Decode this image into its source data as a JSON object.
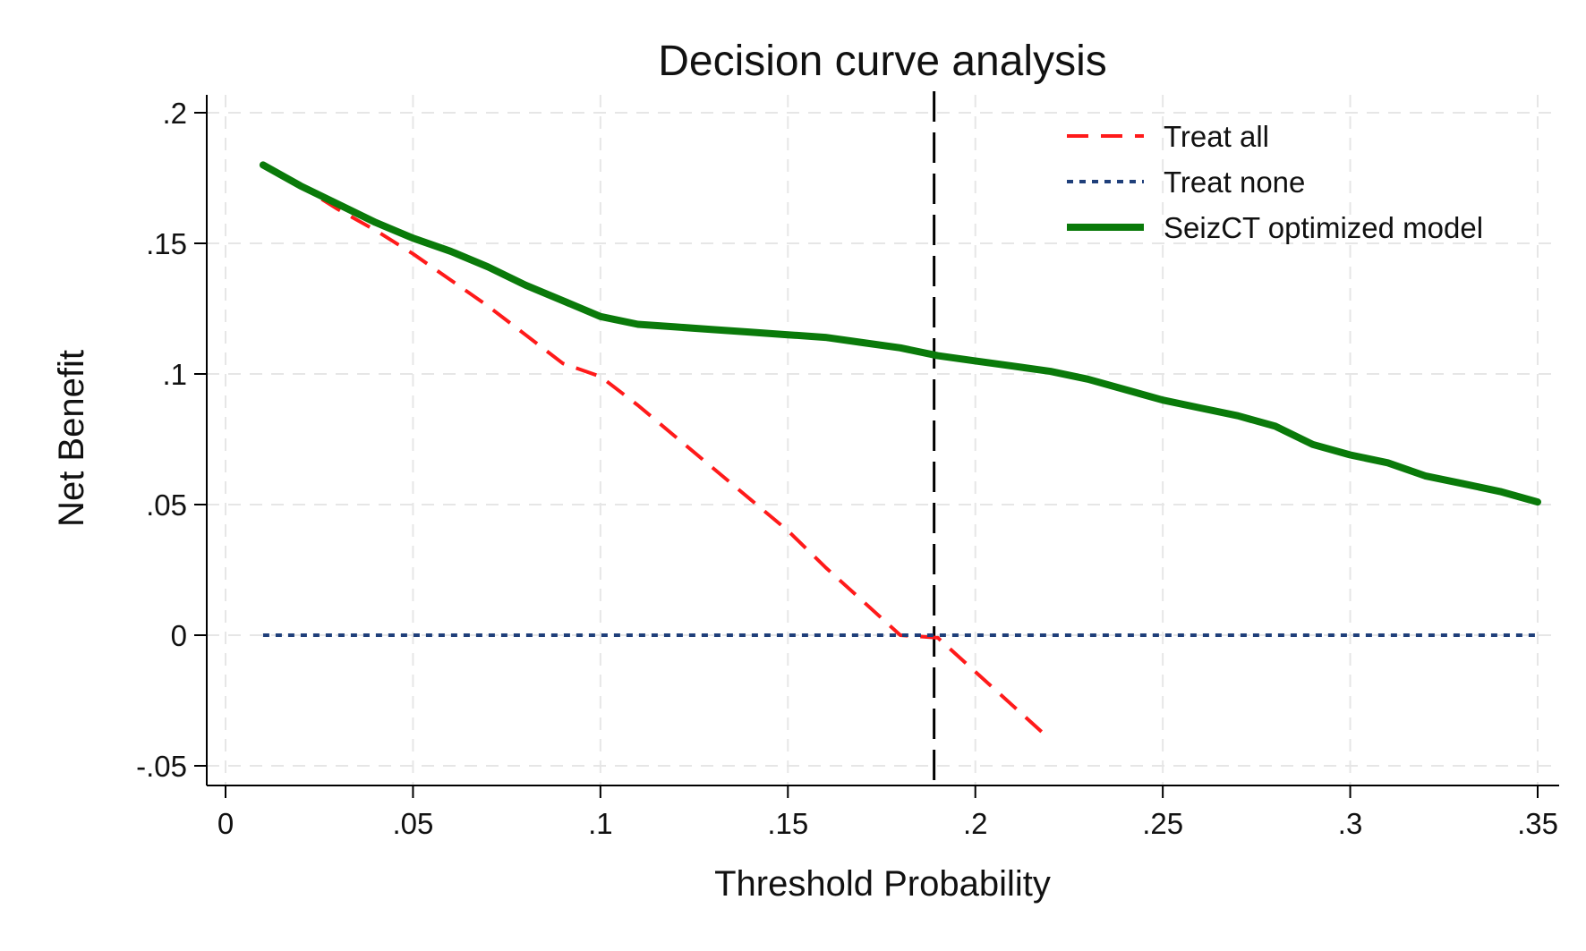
{
  "chart_data": {
    "type": "line",
    "title": "Decision curve analysis",
    "xlabel": "Threshold Probability",
    "ylabel": "Net Benefit",
    "xlim": [
      0,
      0.35
    ],
    "ylim": [
      -0.05,
      0.2
    ],
    "x_ticks": [
      {
        "value": 0,
        "label": "0"
      },
      {
        "value": 0.05,
        "label": ".05"
      },
      {
        "value": 0.1,
        "label": ".1"
      },
      {
        "value": 0.15,
        "label": ".15"
      },
      {
        "value": 0.2,
        "label": ".2"
      },
      {
        "value": 0.25,
        "label": ".25"
      },
      {
        "value": 0.3,
        "label": ".3"
      },
      {
        "value": 0.35,
        "label": ".35"
      }
    ],
    "y_ticks": [
      {
        "value": -0.05,
        "label": "-.05"
      },
      {
        "value": 0,
        "label": "0"
      },
      {
        "value": 0.05,
        "label": ".05"
      },
      {
        "value": 0.1,
        "label": ".1"
      },
      {
        "value": 0.15,
        "label": ".15"
      },
      {
        "value": 0.2,
        "label": ".2"
      }
    ],
    "grid": true,
    "legend_position": "top-right",
    "reference_line": {
      "x": 0.189,
      "color": "#000000",
      "style": "longdash"
    },
    "series": [
      {
        "name": "Treat all",
        "color": "#ff1a1a",
        "style": "dash",
        "x": [
          0.01,
          0.02,
          0.03,
          0.04,
          0.05,
          0.06,
          0.07,
          0.08,
          0.09,
          0.1,
          0.11,
          0.12,
          0.13,
          0.14,
          0.15,
          0.16,
          0.17,
          0.18,
          0.19,
          0.2,
          0.21,
          0.22
        ],
        "y": [
          0.18,
          0.172,
          0.163,
          0.155,
          0.146,
          0.136,
          0.126,
          0.115,
          0.104,
          0.099,
          0.088,
          0.076,
          0.064,
          0.052,
          0.04,
          0.026,
          0.013,
          0.0,
          -0.001,
          -0.014,
          -0.027,
          -0.04
        ]
      },
      {
        "name": "Treat none",
        "color": "#1f3f7a",
        "style": "dot",
        "x": [
          0.01,
          0.35
        ],
        "y": [
          0,
          0
        ]
      },
      {
        "name": "SeizCT optimized model",
        "color": "#0a7a0a",
        "style": "solid",
        "x": [
          0.01,
          0.02,
          0.03,
          0.04,
          0.05,
          0.06,
          0.07,
          0.08,
          0.09,
          0.1,
          0.11,
          0.12,
          0.13,
          0.14,
          0.15,
          0.16,
          0.17,
          0.18,
          0.19,
          0.2,
          0.21,
          0.22,
          0.23,
          0.24,
          0.25,
          0.26,
          0.27,
          0.28,
          0.29,
          0.3,
          0.31,
          0.32,
          0.33,
          0.34,
          0.35
        ],
        "y": [
          0.18,
          0.172,
          0.165,
          0.158,
          0.152,
          0.147,
          0.141,
          0.134,
          0.128,
          0.122,
          0.119,
          0.118,
          0.117,
          0.116,
          0.115,
          0.114,
          0.112,
          0.11,
          0.107,
          0.105,
          0.103,
          0.101,
          0.098,
          0.094,
          0.09,
          0.087,
          0.084,
          0.08,
          0.073,
          0.069,
          0.066,
          0.061,
          0.058,
          0.055,
          0.051
        ]
      }
    ]
  }
}
